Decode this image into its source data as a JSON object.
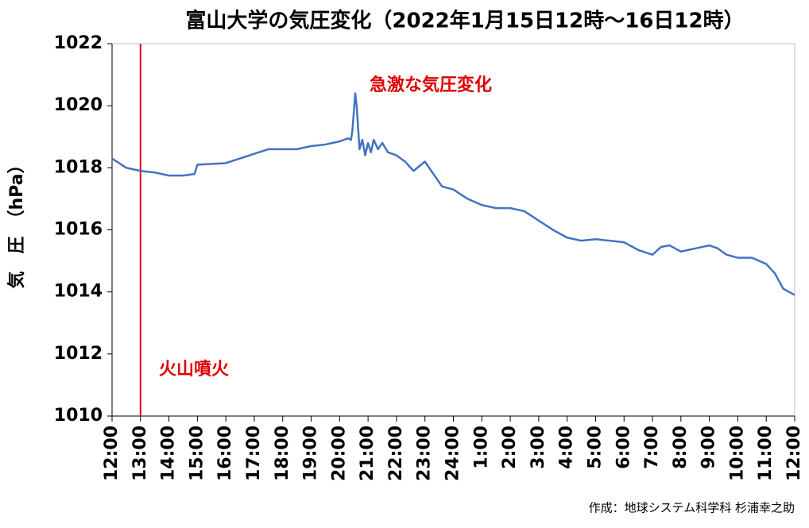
{
  "chart_data": {
    "type": "line",
    "title": "富山大学の気圧変化（2022年1月15日12時～16日12時）",
    "y_label": "気　圧　（hPa）",
    "annotations": [
      "急激な気圧変化",
      "火山噴火"
    ],
    "credit": "作成：地球システム科学科 杉浦幸之助",
    "event_line": {
      "x": 1,
      "color": "#e00000"
    },
    "xlim": [
      0,
      24
    ],
    "xticks": [
      {
        "value": 0,
        "label": "12:00"
      },
      {
        "value": 1,
        "label": "13:00"
      },
      {
        "value": 2,
        "label": "14:00"
      },
      {
        "value": 3,
        "label": "15:00"
      },
      {
        "value": 4,
        "label": "16:00"
      },
      {
        "value": 5,
        "label": "17:00"
      },
      {
        "value": 6,
        "label": "18:00"
      },
      {
        "value": 7,
        "label": "19:00"
      },
      {
        "value": 8,
        "label": "20:00"
      },
      {
        "value": 9,
        "label": "21:00"
      },
      {
        "value": 10,
        "label": "22:00"
      },
      {
        "value": 11,
        "label": "23:00"
      },
      {
        "value": 12,
        "label": "24:00"
      },
      {
        "value": 13,
        "label": "1:00"
      },
      {
        "value": 14,
        "label": "2:00"
      },
      {
        "value": 15,
        "label": "3:00"
      },
      {
        "value": 16,
        "label": "4:00"
      },
      {
        "value": 17,
        "label": "5:00"
      },
      {
        "value": 18,
        "label": "6:00"
      },
      {
        "value": 19,
        "label": "7:00"
      },
      {
        "value": 20,
        "label": "8:00"
      },
      {
        "value": 21,
        "label": "9:00"
      },
      {
        "value": 22,
        "label": "10:00"
      },
      {
        "value": 23,
        "label": "11:00"
      },
      {
        "value": 24,
        "label": "12:00"
      }
    ],
    "ylim": [
      1010,
      1022
    ],
    "yticks": [
      1010,
      1012,
      1014,
      1016,
      1018,
      1020,
      1022
    ],
    "series": [
      {
        "color": "#4472c4",
        "x": [
          0,
          0.5,
          1,
          1.5,
          2,
          2.5,
          2.9,
          3.0,
          4.0,
          4.5,
          5.0,
          5.5,
          6.5,
          7,
          7.5,
          8,
          8.3,
          8.4,
          8.45,
          8.55,
          8.6,
          8.65,
          8.7,
          8.8,
          8.9,
          9.0,
          9.1,
          9.2,
          9.35,
          9.5,
          9.7,
          10.0,
          10.3,
          10.6,
          11.0,
          11.3,
          11.6,
          12,
          12.5,
          13,
          13.5,
          14,
          14.5,
          15,
          15.5,
          16,
          16.5,
          17,
          17.5,
          18,
          18.5,
          19,
          19.3,
          19.6,
          20,
          20.5,
          21,
          21.3,
          21.6,
          22,
          22.5,
          23,
          23.3,
          23.6,
          24
        ],
        "values": [
          1018.3,
          1018.0,
          1017.9,
          1017.85,
          1017.75,
          1017.75,
          1017.8,
          1018.1,
          1018.15,
          1018.3,
          1018.45,
          1018.6,
          1018.6,
          1018.7,
          1018.75,
          1018.85,
          1018.95,
          1018.9,
          1019.2,
          1020.4,
          1020.0,
          1019.3,
          1018.6,
          1018.9,
          1018.4,
          1018.8,
          1018.5,
          1018.9,
          1018.6,
          1018.8,
          1018.5,
          1018.4,
          1018.2,
          1017.9,
          1018.2,
          1017.8,
          1017.4,
          1017.3,
          1017.0,
          1016.8,
          1016.7,
          1016.7,
          1016.6,
          1016.3,
          1016.0,
          1015.75,
          1015.65,
          1015.7,
          1015.65,
          1015.6,
          1015.35,
          1015.2,
          1015.45,
          1015.5,
          1015.3,
          1015.4,
          1015.5,
          1015.4,
          1015.2,
          1015.1,
          1015.1,
          1014.9,
          1014.6,
          1014.1,
          1013.9
        ]
      }
    ]
  }
}
